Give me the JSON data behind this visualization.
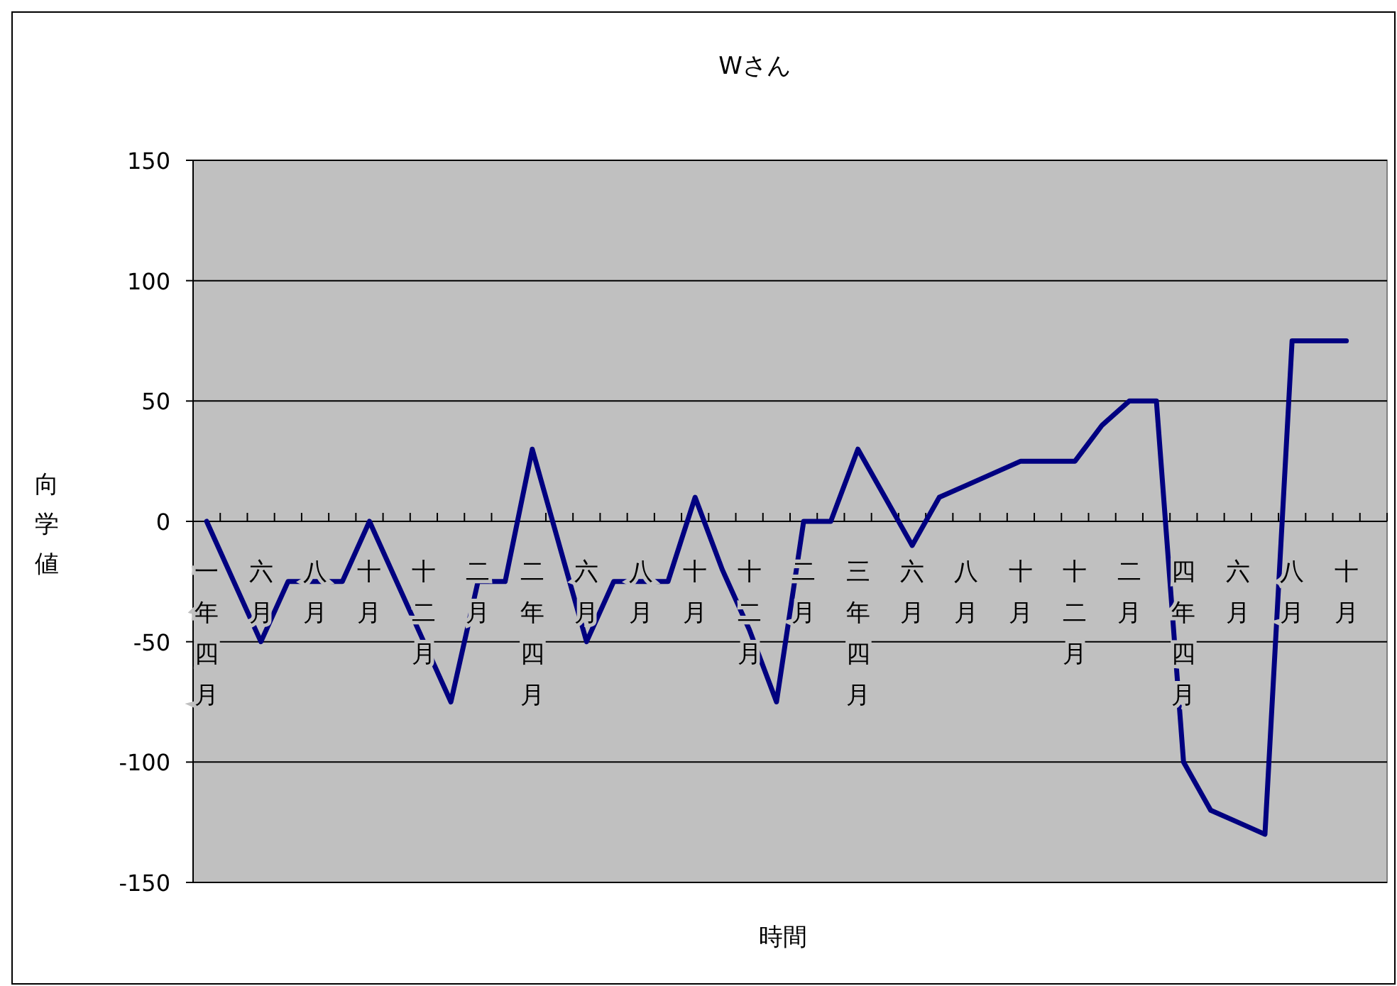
{
  "chart_data": {
    "type": "line",
    "title": "Wさん",
    "xlabel": "時間",
    "ylabel": "向学値",
    "categories": [
      "一年四月",
      null,
      "六月",
      null,
      "八月",
      null,
      "十月",
      null,
      "十二月",
      null,
      "二月",
      null,
      "二年四月",
      null,
      "六月",
      null,
      "八月",
      null,
      "十月",
      null,
      "十二月",
      null,
      "二月",
      null,
      "三年四月",
      null,
      "六月",
      null,
      "八月",
      null,
      "十月",
      null,
      "十二月",
      null,
      "二月",
      null,
      "四年四月",
      null,
      "六月",
      null,
      "八月",
      null,
      "十月",
      null
    ],
    "series": [
      {
        "color": "#000080",
        "values": [
          0,
          -25,
          -50,
          -25,
          -25,
          -25,
          0,
          -25,
          -50,
          -75,
          -25,
          -25,
          30,
          -10,
          -50,
          -25,
          -25,
          -25,
          10,
          -20,
          -45,
          -75,
          0,
          0,
          30,
          10,
          -10,
          10,
          15,
          20,
          25,
          25,
          25,
          40,
          50,
          50,
          -100,
          -120,
          -125,
          -130,
          75,
          75,
          75,
          null
        ]
      }
    ],
    "ylim": [
      -150,
      150
    ],
    "yticks": [
      -150,
      -100,
      -50,
      0,
      50,
      100,
      150
    ],
    "grid": "y",
    "legend": false,
    "marker": "none",
    "line_style": "solid"
  }
}
